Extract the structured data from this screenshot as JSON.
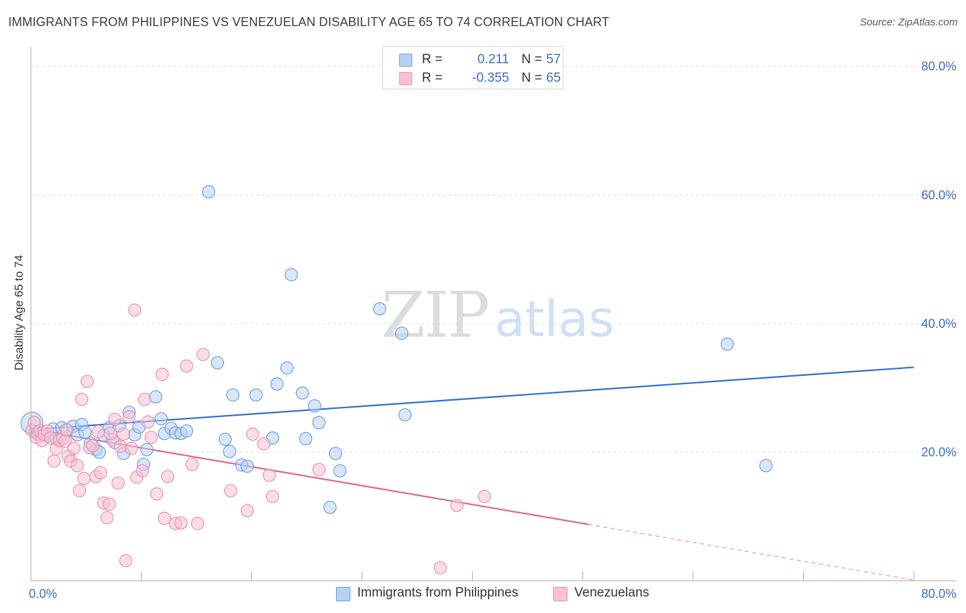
{
  "title": "IMMIGRANTS FROM PHILIPPINES VS VENEZUELAN DISABILITY AGE 65 TO 74 CORRELATION CHART",
  "source": "Source: ZipAtlas.com",
  "watermark": {
    "zip": "ZIP",
    "atlas": "atlas"
  },
  "legend": {
    "r_label": "R =",
    "n_label": "N =",
    "rows": [
      {
        "r": "0.211",
        "n": "57"
      },
      {
        "r": "-0.355",
        "n": "65"
      }
    ]
  },
  "colors": {
    "blue_fill": "#b7d1f2",
    "blue_stroke": "#6f9fdc",
    "blue_line": "#2f6fd0",
    "pink_fill": "#f7c1d3",
    "pink_stroke": "#e991b0",
    "pink_line": "#e0668f",
    "tick_text": "#3a6fc4",
    "grid": "#d9d9d9"
  },
  "chart_data": {
    "type": "scatter",
    "ylabel": "Disability Age 65 to 74",
    "xlim": [
      0,
      80
    ],
    "ylim": [
      0,
      82
    ],
    "x_tick_labels": [
      {
        "value": 0,
        "label": "0.0%"
      },
      {
        "value": 80,
        "label": "80.0%"
      }
    ],
    "y_tick_labels": [
      {
        "value": 20,
        "label": "20.0%"
      },
      {
        "value": 40,
        "label": "40.0%"
      },
      {
        "value": 60,
        "label": "60.0%"
      },
      {
        "value": 80,
        "label": "80.0%"
      }
    ],
    "series": [
      {
        "name": "Immigrants from Philippines",
        "color": "blue",
        "points": [
          [
            0.1,
            24.5
          ],
          [
            0.4,
            23.2
          ],
          [
            0.6,
            22.8
          ],
          [
            1.0,
            23.0
          ],
          [
            1.5,
            22.5
          ],
          [
            2.0,
            23.6
          ],
          [
            2.3,
            22.1
          ],
          [
            2.8,
            23.8
          ],
          [
            3.3,
            23.4
          ],
          [
            3.8,
            24.0
          ],
          [
            4.2,
            22.7
          ],
          [
            4.6,
            24.3
          ],
          [
            4.9,
            23.1
          ],
          [
            5.4,
            21.4
          ],
          [
            5.9,
            20.4
          ],
          [
            6.2,
            20.0
          ],
          [
            6.6,
            22.6
          ],
          [
            7.1,
            23.8
          ],
          [
            7.6,
            21.5
          ],
          [
            8.0,
            24.1
          ],
          [
            8.4,
            19.8
          ],
          [
            8.9,
            26.2
          ],
          [
            9.4,
            22.7
          ],
          [
            9.8,
            23.9
          ],
          [
            10.2,
            18.1
          ],
          [
            10.5,
            20.4
          ],
          [
            11.3,
            28.6
          ],
          [
            11.8,
            25.2
          ],
          [
            12.1,
            22.9
          ],
          [
            12.7,
            23.7
          ],
          [
            13.1,
            23.0
          ],
          [
            13.6,
            22.9
          ],
          [
            14.1,
            23.3
          ],
          [
            16.1,
            60.5
          ],
          [
            16.9,
            33.9
          ],
          [
            17.6,
            22.0
          ],
          [
            18.0,
            20.1
          ],
          [
            18.3,
            28.9
          ],
          [
            19.1,
            18.0
          ],
          [
            19.6,
            17.8
          ],
          [
            20.4,
            28.9
          ],
          [
            21.9,
            22.2
          ],
          [
            22.3,
            30.6
          ],
          [
            23.2,
            33.1
          ],
          [
            23.6,
            47.6
          ],
          [
            24.6,
            29.2
          ],
          [
            24.9,
            22.1
          ],
          [
            25.7,
            27.2
          ],
          [
            26.1,
            24.6
          ],
          [
            27.1,
            11.4
          ],
          [
            27.6,
            19.8
          ],
          [
            28.0,
            17.1
          ],
          [
            31.6,
            42.3
          ],
          [
            33.6,
            38.5
          ],
          [
            33.9,
            25.8
          ],
          [
            63.1,
            36.8
          ],
          [
            66.6,
            17.9
          ]
        ]
      },
      {
        "name": "Venezuelans",
        "color": "pink",
        "points": [
          [
            0.1,
            23.4
          ],
          [
            0.3,
            24.6
          ],
          [
            0.5,
            22.3
          ],
          [
            0.8,
            23.3
          ],
          [
            1.0,
            21.8
          ],
          [
            1.2,
            22.7
          ],
          [
            1.5,
            23.3
          ],
          [
            1.8,
            22.2
          ],
          [
            2.1,
            18.6
          ],
          [
            2.3,
            20.5
          ],
          [
            2.6,
            21.8
          ],
          [
            2.9,
            22.2
          ],
          [
            3.1,
            21.7
          ],
          [
            3.4,
            19.4
          ],
          [
            3.6,
            18.6
          ],
          [
            3.9,
            20.6
          ],
          [
            4.2,
            17.9
          ],
          [
            4.4,
            14.0
          ],
          [
            4.6,
            28.2
          ],
          [
            4.8,
            15.9
          ],
          [
            5.1,
            31.0
          ],
          [
            5.3,
            20.7
          ],
          [
            5.6,
            21.0
          ],
          [
            5.9,
            16.2
          ],
          [
            6.1,
            23.2
          ],
          [
            6.3,
            16.8
          ],
          [
            6.6,
            12.1
          ],
          [
            6.9,
            9.8
          ],
          [
            7.1,
            11.9
          ],
          [
            7.4,
            21.9
          ],
          [
            7.6,
            25.1
          ],
          [
            7.9,
            15.2
          ],
          [
            8.1,
            20.9
          ],
          [
            8.4,
            22.8
          ],
          [
            8.6,
            3.1
          ],
          [
            8.9,
            25.5
          ],
          [
            9.1,
            20.6
          ],
          [
            9.4,
            42.1
          ],
          [
            9.6,
            16.1
          ],
          [
            10.1,
            17.1
          ],
          [
            10.3,
            28.2
          ],
          [
            10.6,
            24.7
          ],
          [
            10.9,
            22.3
          ],
          [
            11.4,
            13.5
          ],
          [
            11.9,
            32.1
          ],
          [
            12.1,
            9.7
          ],
          [
            12.4,
            16.2
          ],
          [
            13.1,
            8.9
          ],
          [
            13.6,
            9.0
          ],
          [
            14.1,
            33.4
          ],
          [
            14.6,
            18.1
          ],
          [
            15.1,
            8.9
          ],
          [
            15.6,
            35.2
          ],
          [
            18.1,
            14.0
          ],
          [
            19.6,
            10.9
          ],
          [
            20.1,
            22.8
          ],
          [
            21.1,
            21.3
          ],
          [
            21.6,
            16.4
          ],
          [
            21.9,
            13.1
          ],
          [
            26.1,
            17.3
          ],
          [
            37.1,
            2.0
          ],
          [
            38.6,
            11.7
          ],
          [
            41.1,
            13.1
          ],
          [
            3.2,
            23.5
          ],
          [
            7.2,
            22.9
          ]
        ]
      }
    ],
    "trend_lines": [
      {
        "series": "Immigrants from Philippines",
        "x0": 0,
        "y0": 23.5,
        "x1": 80,
        "y1": 33.2,
        "dashed_from": null
      },
      {
        "series": "Venezuelans",
        "x0": 0,
        "y0": 23.6,
        "x1": 80,
        "y1": 0.1,
        "dashed_from": 50.5
      }
    ],
    "grid": true
  },
  "bottom_legend": [
    {
      "label": "Immigrants from Philippines"
    },
    {
      "label": "Venezuelans"
    }
  ]
}
